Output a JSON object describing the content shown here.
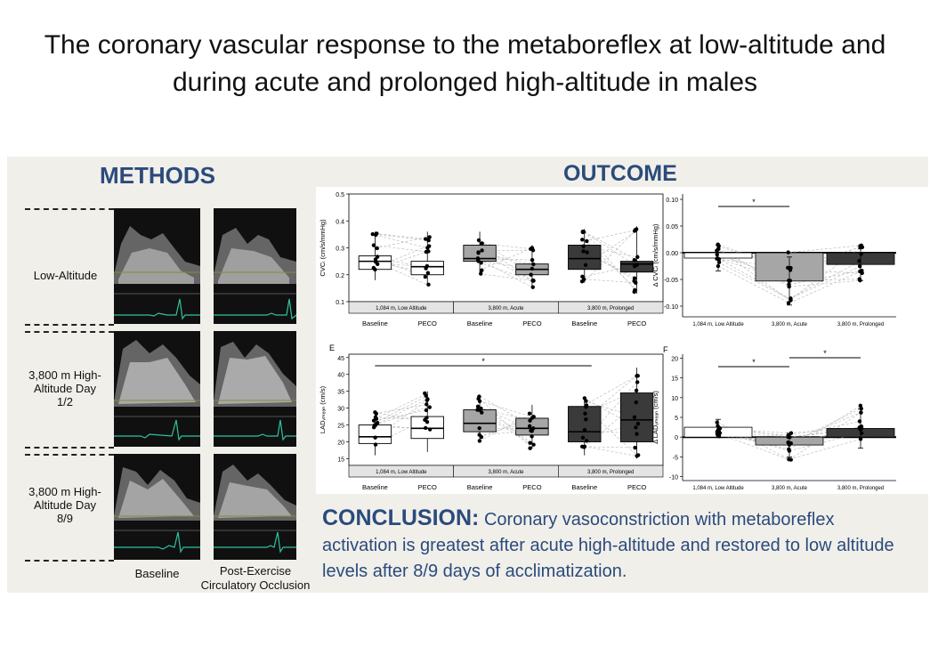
{
  "title": "The coronary vascular response to the metaboreflex at low-altitude and during acute and prolonged high-altitude in males",
  "methods": {
    "heading": "METHODS",
    "rows": [
      "Low-Altitude",
      "3,800 m High-Altitude Day 1/2",
      "3,800 m High-Altitude Day 8/9"
    ],
    "col_baseline": "Baseline",
    "col_peco": "Post-Exercise Circulatory Occlusion",
    "ecg_marker": "-2"
  },
  "outcome": {
    "heading": "OUTCOME"
  },
  "conclusion": {
    "heading": "CONCLUSION:",
    "text": "Coronary vasoconstriction with metaboreflex activation is greatest after acute high-altitude and restored to low altitude levels after 8/9 days of acclimatization."
  },
  "colors": {
    "low": "#ffffff",
    "acute": "#a6a6a6",
    "prolonged": "#3a3a3a",
    "heading": "#2a4b7c"
  },
  "chart_data": [
    {
      "type": "box",
      "ylabel": "CVCₗ (cm/s/mmHg)",
      "ylim": [
        0.1,
        0.5
      ],
      "yticks": [
        "0.1",
        "0.2",
        "0.3",
        "0.4",
        "0.5"
      ],
      "groups": [
        "1,084 m, Low Altitude",
        "3,800 m, Acute",
        "3,800 m, Prolonged"
      ],
      "categories": [
        "Baseline",
        "PECO",
        "Baseline",
        "PECO",
        "Baseline",
        "PECO"
      ],
      "boxes": [
        {
          "q1": 0.22,
          "median": 0.25,
          "q3": 0.27,
          "min": 0.18,
          "max": 0.36
        },
        {
          "q1": 0.2,
          "median": 0.23,
          "q3": 0.25,
          "min": 0.16,
          "max": 0.36
        },
        {
          "q1": 0.25,
          "median": 0.26,
          "q3": 0.31,
          "min": 0.2,
          "max": 0.36
        },
        {
          "q1": 0.2,
          "median": 0.22,
          "q3": 0.24,
          "min": 0.15,
          "max": 0.31
        },
        {
          "q1": 0.22,
          "median": 0.26,
          "q3": 0.31,
          "min": 0.17,
          "max": 0.37
        },
        {
          "q1": 0.21,
          "median": 0.24,
          "q3": 0.25,
          "min": 0.13,
          "max": 0.38
        }
      ],
      "annotations": []
    },
    {
      "type": "bar",
      "ylabel": "Δ CVCₗ (cm/s/mmHg)",
      "ylim": [
        -0.12,
        0.11
      ],
      "yticks": [
        "-0.10",
        "-0.05",
        "0.00",
        "0.05",
        "0.10"
      ],
      "categories": [
        "1,084 m, Low Altitude",
        "3,800 m, Acute",
        "3,800 m, Prolonged"
      ],
      "values": [
        -0.01,
        -0.053,
        -0.022
      ],
      "errors": [
        0.024,
        0.045,
        0.03
      ],
      "annotations": [
        "*"
      ]
    },
    {
      "type": "box",
      "panel_label": "E",
      "ylabel": "LADᵥₘₑₐₙ (cm/s)",
      "ylim": [
        13,
        46
      ],
      "yticks": [
        "15",
        "20",
        "25",
        "30",
        "35",
        "40",
        "45"
      ],
      "groups": [
        "1,084 m, Low Altitude",
        "3,800 m, Acute",
        "3,800 m, Prolonged"
      ],
      "categories": [
        "Baseline",
        "PECO",
        "Baseline",
        "PECO",
        "Baseline",
        "PECO"
      ],
      "boxes": [
        {
          "q1": 19.5,
          "median": 21.5,
          "q3": 25,
          "min": 16,
          "max": 29
        },
        {
          "q1": 21,
          "median": 24,
          "q3": 27.5,
          "min": 17,
          "max": 35
        },
        {
          "q1": 23,
          "median": 25.5,
          "q3": 29.5,
          "min": 20,
          "max": 34
        },
        {
          "q1": 22,
          "median": 24,
          "q3": 27,
          "min": 18,
          "max": 31
        },
        {
          "q1": 20,
          "median": 23,
          "q3": 30.5,
          "min": 16,
          "max": 33
        },
        {
          "q1": 20,
          "median": 26.5,
          "q3": 34.5,
          "min": 15,
          "max": 42
        }
      ],
      "annotations": [
        "*"
      ]
    },
    {
      "type": "bar",
      "panel_label": "F",
      "ylabel": "Δ LADᵥₘₑₐₙ (cm/s)",
      "ylim": [
        -11,
        21
      ],
      "yticks": [
        "-10",
        "-5",
        "0",
        "5",
        "10",
        "15",
        "20"
      ],
      "categories": [
        "1,084 m, Low Altitude",
        "3,800 m, Acute",
        "3,800 m, Prolonged"
      ],
      "values": [
        2.5,
        -2,
        2.2
      ],
      "errors": [
        2,
        3,
        5
      ],
      "annotations": [
        "*",
        "*"
      ]
    }
  ]
}
